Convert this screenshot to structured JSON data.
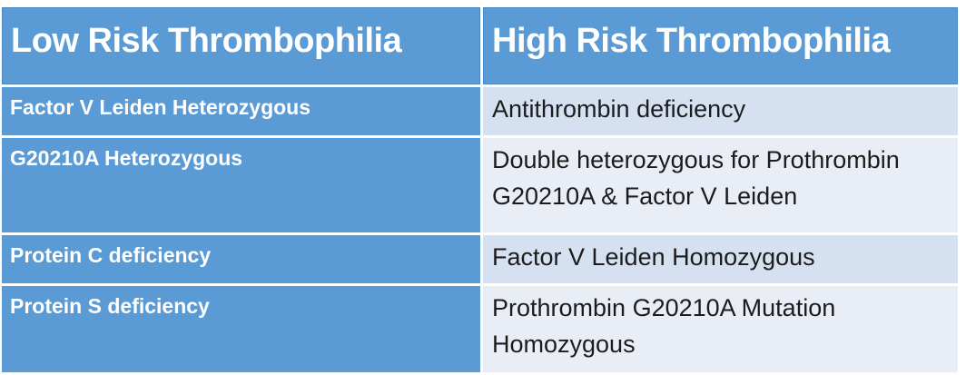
{
  "table": {
    "columns": [
      {
        "header": "Low Risk Thrombophilia"
      },
      {
        "header": "High Risk Thrombophilia"
      }
    ],
    "rows": [
      {
        "low": "Factor V Leiden Heterozygous",
        "high": "Antithrombin deficiency"
      },
      {
        "low": "G20210A Heterozygous",
        "high": "Double heterozygous for Prothrombin G20210A & Factor V Leiden"
      },
      {
        "low": "Protein C deficiency",
        "high": "Factor V Leiden Homozygous"
      },
      {
        "low": "Protein S deficiency",
        "high": "Prothrombin G20210A Mutation Homozygous"
      }
    ]
  },
  "chart_data": {
    "type": "table",
    "title": "",
    "columns": [
      "Low Risk Thrombophilia",
      "High Risk Thrombophilia"
    ],
    "rows": [
      [
        "Factor V Leiden Heterozygous",
        "Antithrombin deficiency"
      ],
      [
        "G20210A Heterozygous",
        "Double heterozygous for Prothrombin G20210A & Factor V Leiden"
      ],
      [
        "Protein C deficiency",
        "Factor V Leiden Homozygous"
      ],
      [
        "Protein S deficiency",
        "Prothrombin G20210A Mutation Homozygous"
      ]
    ]
  },
  "colors": {
    "header_blue": "#5B9BD5",
    "header_border": "#4c88c6",
    "header_text": "#FFFFFF",
    "row_light": "#D5E1F1",
    "row_lighter": "#E9EDF6",
    "body_text": "#1C1C1C"
  }
}
